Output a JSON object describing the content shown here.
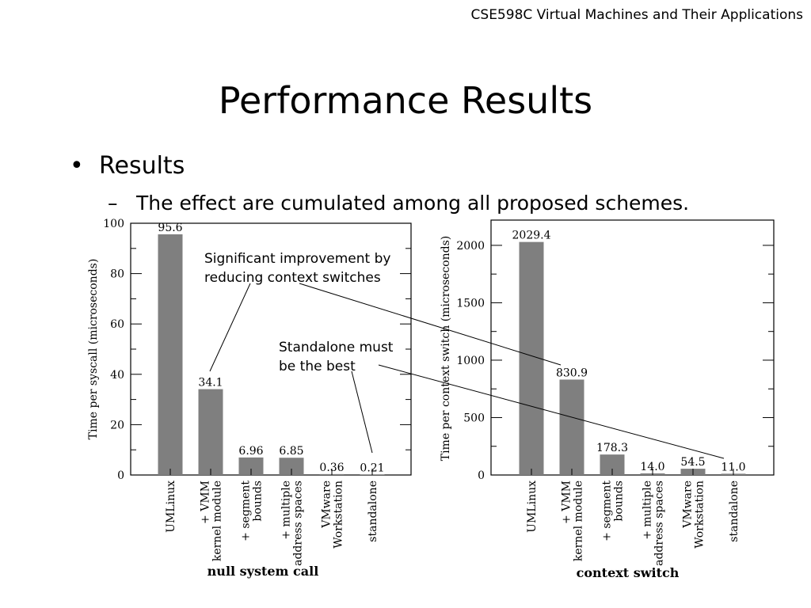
{
  "header": {
    "course": "CSE598C Virtual Machines and Their Applications"
  },
  "slide": {
    "title": "Performance Results",
    "bullet": "Results",
    "subbullet": "The effect are cumulated among all proposed schemes."
  },
  "annotations": {
    "improvement": [
      "Significant improvement by",
      "reducing context switches"
    ],
    "standalone": [
      "Standalone must",
      "be the best"
    ]
  },
  "colors": {
    "bar": "#7f7f7f",
    "axis": "#000000",
    "annotation_line": "#000000"
  },
  "chart_data": [
    {
      "type": "bar",
      "title": "",
      "xlabel": "null system call",
      "ylabel": "Time per syscall (microseconds)",
      "ylim": [
        0,
        100
      ],
      "yticks": [
        0,
        20,
        40,
        60,
        80,
        100
      ],
      "grid": false,
      "legend": "none",
      "categories": [
        [
          "UMLinux"
        ],
        [
          "+ VMM",
          "kernel module"
        ],
        [
          "+ segment",
          "bounds"
        ],
        [
          "+ multiple",
          "address spaces"
        ],
        [
          "VMware",
          "Workstation"
        ],
        [
          "standalone"
        ]
      ],
      "values": [
        95.6,
        34.1,
        6.96,
        6.85,
        0.36,
        0.21
      ],
      "value_labels": [
        "95.6",
        "34.1",
        "6.96",
        "6.85",
        "0.36",
        "0.21"
      ]
    },
    {
      "type": "bar",
      "title": "",
      "xlabel": "context switch",
      "ylabel": "Time per context switch (microseconds)",
      "ylim": [
        0,
        2220
      ],
      "yticks": [
        0,
        500,
        1000,
        1500,
        2000
      ],
      "grid": false,
      "legend": "none",
      "categories": [
        [
          "UMLinux"
        ],
        [
          "+ VMM",
          "kernel module"
        ],
        [
          "+ segment",
          "bounds"
        ],
        [
          "+ multiple",
          "address spaces"
        ],
        [
          "VMware",
          "Workstation"
        ],
        [
          "standalone"
        ]
      ],
      "values": [
        2029.4,
        830.9,
        178.3,
        14.0,
        54.5,
        11.0
      ],
      "value_labels": [
        "2029.4",
        "830.9",
        "178.3",
        "14.0",
        "54.5",
        "11.0"
      ]
    }
  ]
}
